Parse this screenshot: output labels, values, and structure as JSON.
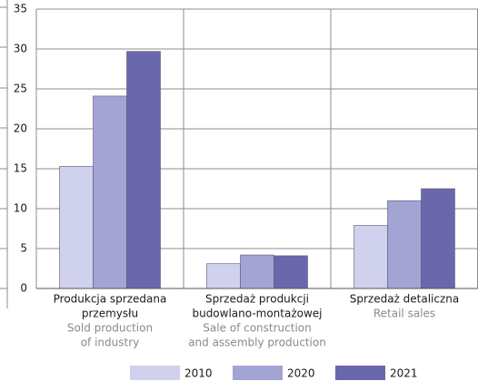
{
  "chart_data": {
    "type": "bar",
    "categories": [
      [
        "Produkcja sprzedana",
        "przemysłu"
      ],
      [
        "Sprzedaż produkcji",
        "budowlano-montażowej"
      ],
      [
        "Sprzedaż detaliczna"
      ]
    ],
    "category_translations": [
      [
        "Sold production",
        "of industry"
      ],
      [
        "Sale of construction",
        "and assembly production"
      ],
      [
        "Retail sales"
      ]
    ],
    "series": [
      {
        "name": "2010",
        "color": "#d0d1ec",
        "values": [
          15.3,
          3.1,
          7.9
        ]
      },
      {
        "name": "2020",
        "color": "#a3a3d4",
        "values": [
          24.1,
          4.2,
          11.0
        ]
      },
      {
        "name": "2021",
        "color": "#6b67ac",
        "values": [
          29.7,
          4.1,
          12.5
        ]
      }
    ],
    "ylim": [
      0,
      35
    ],
    "yticks": [
      0,
      5,
      10,
      15,
      20,
      25,
      30,
      35
    ],
    "grid": true
  }
}
